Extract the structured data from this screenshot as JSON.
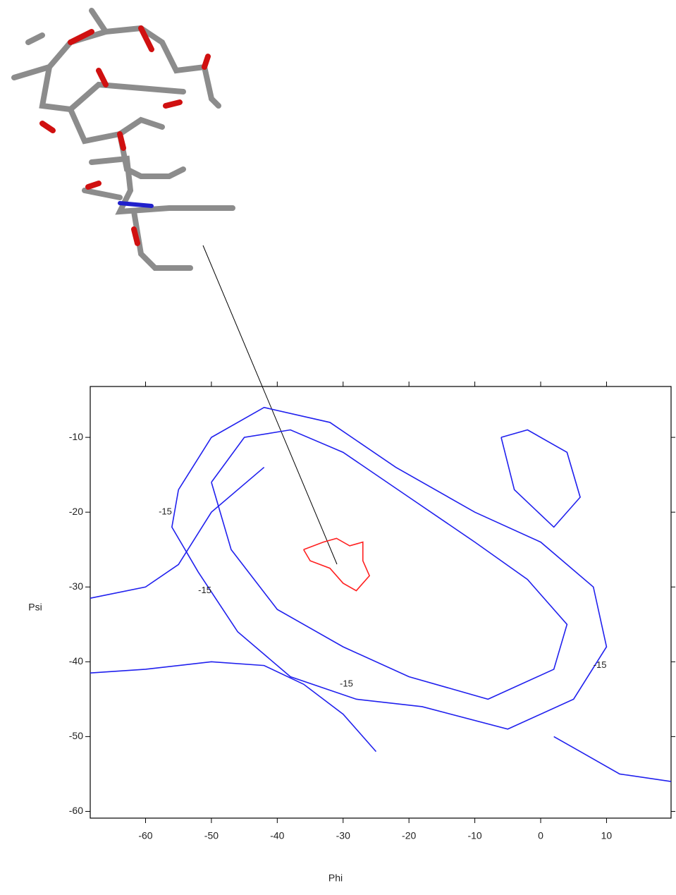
{
  "chart_data": {
    "type": "contour",
    "xlabel": "Phi",
    "ylabel": "Psi",
    "xlim": [
      -68.4,
      19.8
    ],
    "ylim": [
      -60.9,
      -3.2
    ],
    "xticks": [
      -60,
      -50,
      -40,
      -30,
      -20,
      -10,
      0,
      10
    ],
    "yticks": [
      -10,
      -20,
      -30,
      -40,
      -50,
      -60
    ],
    "contours": [
      {
        "color": "#ff2020",
        "x": [
          -36,
          -33,
          -31,
          -29,
          -27,
          -27,
          -26,
          -28,
          -30,
          -32,
          -35,
          -36
        ],
        "y": [
          -25,
          -24,
          -23.5,
          -24.5,
          -24,
          -26.5,
          -28.5,
          -30.5,
          -29.5,
          -27.5,
          -26.5,
          -25
        ]
      },
      {
        "color": "#2020ee",
        "x": [
          -55,
          -50,
          -42,
          -32,
          -22,
          -10,
          0,
          8,
          10,
          5,
          -5,
          -18,
          -28,
          -38,
          -46,
          -52,
          -56,
          -55
        ],
        "y": [
          -17,
          -10,
          -6,
          -8,
          -14,
          -20,
          -24,
          -30,
          -38,
          -45,
          -49,
          -46,
          -45,
          -42,
          -36,
          -28,
          -22,
          -17
        ]
      },
      {
        "color": "#2020ee",
        "x": [
          -50,
          -45,
          -38,
          -30,
          -20,
          -10,
          -2,
          4,
          2,
          -8,
          -20,
          -30,
          -40,
          -47,
          -50
        ],
        "y": [
          -16,
          -10,
          -9,
          -12,
          -18,
          -24,
          -29,
          -35,
          -41,
          -45,
          -42,
          -38,
          -33,
          -25,
          -16
        ]
      },
      {
        "color": "#2020ee",
        "x": [
          -68.4,
          -60,
          -50,
          -42,
          -36,
          -30,
          -25
        ],
        "y": [
          -41.5,
          -41,
          -40,
          -40.5,
          -43,
          -47,
          -52
        ]
      },
      {
        "color": "#2020ee",
        "x": [
          -68.4,
          -60,
          -55,
          -50,
          -42
        ],
        "y": [
          -31.5,
          -30,
          -27,
          -20,
          -14
        ]
      },
      {
        "color": "#2020ee",
        "x": [
          -6,
          -2,
          4,
          6,
          2,
          -4,
          -6
        ],
        "y": [
          -10,
          -9,
          -12,
          -18,
          -22,
          -17,
          -10
        ]
      },
      {
        "color": "#2020ee",
        "x": [
          2,
          6,
          12,
          19.8
        ],
        "y": [
          -50,
          -52,
          -55,
          -56
        ]
      }
    ],
    "contour_labels": [
      {
        "x": -57,
        "y": -20,
        "level": -15
      },
      {
        "x": -51,
        "y": -30.5,
        "level": -15
      },
      {
        "x": -29.5,
        "y": -43,
        "level": -15
      },
      {
        "x": 9,
        "y": -40.5,
        "level": -15
      }
    ]
  }
}
